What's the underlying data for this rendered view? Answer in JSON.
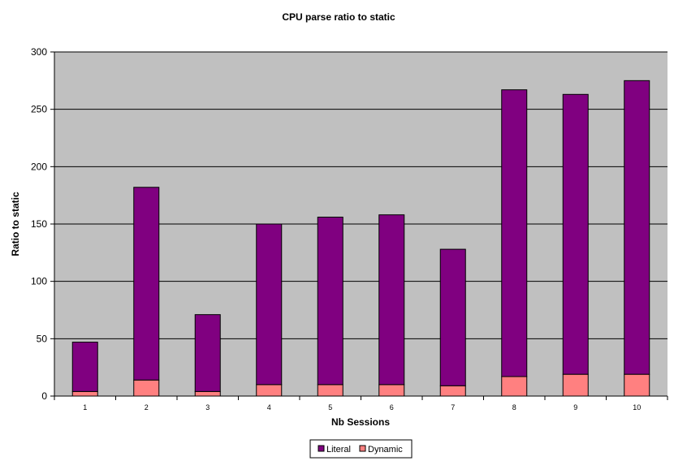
{
  "chart_data": {
    "type": "bar",
    "stacked": true,
    "title": "CPU parse ratio to static",
    "xlabel": "Nb Sessions",
    "ylabel": "Ratio to static",
    "categories": [
      "1",
      "2",
      "3",
      "4",
      "5",
      "6",
      "7",
      "8",
      "9",
      "10"
    ],
    "series": [
      {
        "name": "Dynamic",
        "color": "#ff8080",
        "values": [
          4,
          14,
          4,
          10,
          10,
          10,
          9,
          17,
          19,
          19
        ]
      },
      {
        "name": "Literal",
        "color": "#800080",
        "values": [
          43,
          168,
          67,
          140,
          146,
          148,
          119,
          250,
          244,
          256
        ]
      }
    ],
    "totals": [
      47,
      182,
      71,
      150,
      156,
      158,
      128,
      267,
      263,
      275
    ],
    "ylim": [
      0,
      300
    ],
    "yticks": [
      0,
      50,
      100,
      150,
      200,
      250,
      300
    ],
    "grid": true,
    "plot_background": "#c0c0c0",
    "legend": {
      "position": "bottom",
      "entries": [
        "Literal",
        "Dynamic"
      ]
    }
  }
}
